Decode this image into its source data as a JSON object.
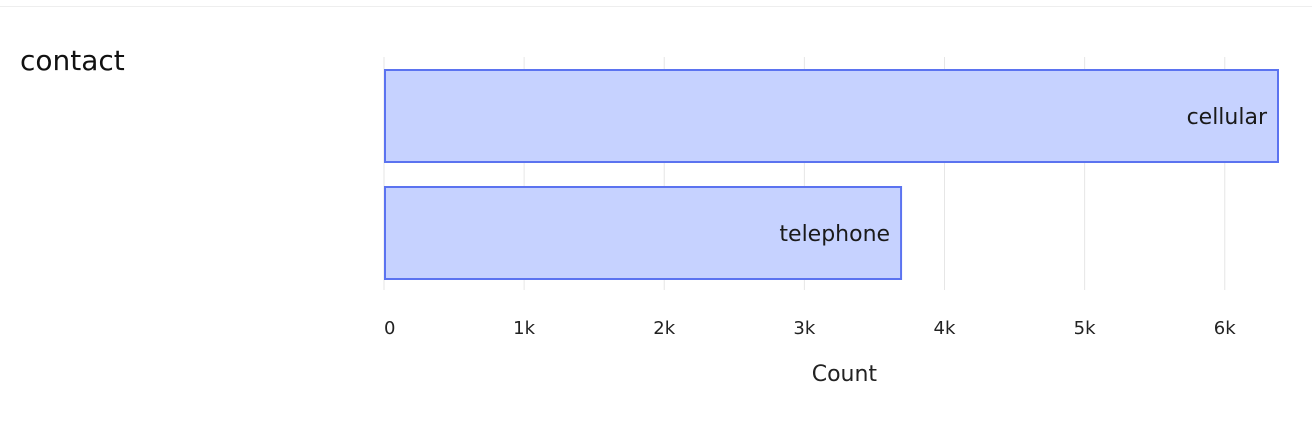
{
  "field": {
    "title": "contact"
  },
  "chart_data": {
    "type": "bar",
    "orientation": "horizontal",
    "categories": [
      "cellular",
      "telephone"
    ],
    "values": [
      6380,
      3690
    ],
    "xlabel": "Count",
    "ylabel": "",
    "xlim": [
      0,
      6380
    ],
    "x_ticks": [
      0,
      1000,
      2000,
      3000,
      4000,
      5000,
      6000
    ],
    "x_tick_labels": [
      "0",
      "1k",
      "2k",
      "3k",
      "4k",
      "5k",
      "6k"
    ],
    "grid": true,
    "bar_labels_inside": true,
    "colors": {
      "bar_fill": "#c6d2ff",
      "bar_stroke": "#5b73f0",
      "grid": "#e6e6e6"
    }
  }
}
